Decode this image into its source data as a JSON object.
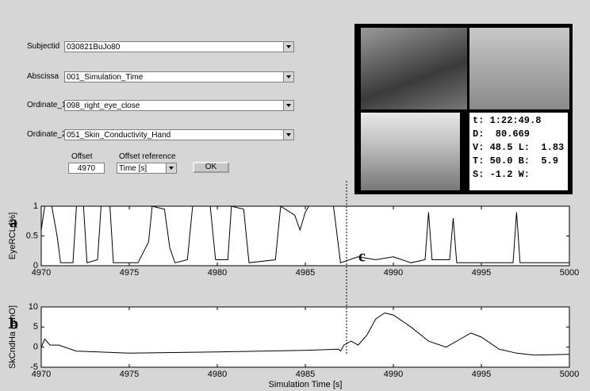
{
  "form": {
    "fields": [
      {
        "label": "Subjectid",
        "value": "030821BuJo80"
      },
      {
        "label": "Abscissa",
        "value": "001_Simulation_Time"
      },
      {
        "label": "Ordinate_1",
        "value": "098_right_eye_close"
      },
      {
        "label": "Ordinate_2",
        "value": "051_Skin_Conductivity_Hand"
      }
    ],
    "offset": {
      "label": "Offset",
      "value": 4970
    },
    "offset_reference": {
      "label": "Offset reference",
      "value": "Time [s]"
    },
    "button": "OK"
  },
  "video": {
    "readout": [
      "t: 1:22:49.8",
      "D:  80.669",
      "V: 48.5 L:  1.83",
      "T: 50.0 B:  5.9",
      "S: -1.2 W:"
    ]
  },
  "panel_labels": [
    "a",
    "b",
    "c"
  ],
  "chart_data": [
    {
      "type": "line",
      "ylabel": "EyeRCL [%]",
      "color": "#000000",
      "x": [
        4970.0,
        4970.2,
        4970.6,
        4970.9,
        4971.1,
        4971.8,
        4972.0,
        4972.4,
        4972.6,
        4973.2,
        4973.4,
        4973.9,
        4974.1,
        4975.5,
        4976.1,
        4976.3,
        4977.0,
        4977.3,
        4977.6,
        4978.3,
        4978.6,
        4979.6,
        4979.9,
        4980.6,
        4980.8,
        4981.5,
        4981.8,
        4983.3,
        4983.6,
        4984.4,
        4984.7,
        4985.0,
        4985.2,
        4985.8,
        4986.6,
        4987.0,
        4988.0,
        4989.0,
        4990.0,
        4991.0,
        4991.8,
        4992.0,
        4992.2,
        4993.2,
        4993.4,
        4993.6,
        4995.0,
        4996.8,
        4997.0,
        4997.2,
        4998.5,
        5000.0
      ],
      "values": [
        0.6,
        1,
        1,
        0.5,
        0.05,
        0.05,
        1,
        1,
        0.05,
        0.1,
        1,
        1,
        0.05,
        0.05,
        0.4,
        1,
        0.95,
        0.3,
        0.05,
        0.1,
        1,
        1,
        0.1,
        0.1,
        1,
        0.95,
        0.05,
        0.1,
        1,
        0.85,
        0.6,
        0.9,
        1,
        1,
        1,
        0.05,
        0.15,
        0.1,
        0.15,
        0.05,
        0.1,
        0.9,
        0.1,
        0.1,
        0.8,
        0.05,
        0.05,
        0.05,
        0.9,
        0.05,
        0.05,
        0.05
      ],
      "xlim": [
        4970,
        5000
      ],
      "xticks": [
        4970,
        4975,
        4980,
        4985,
        4990,
        4995,
        5000
      ],
      "ylim": [
        0,
        1
      ],
      "yticks": [
        0,
        0.5,
        1
      ]
    },
    {
      "type": "line",
      "ylabel": "SkCndHa [mhO]",
      "xlabel": "Simulation Time [s]",
      "color": "#000000",
      "x": [
        4970.0,
        4970.2,
        4970.5,
        4971.0,
        4972.0,
        4975.0,
        4980.0,
        4985.0,
        4986.9,
        4987.0,
        4987.2,
        4987.6,
        4988.0,
        4988.5,
        4989.0,
        4989.5,
        4990.0,
        4991.0,
        4992.0,
        4993.0,
        4993.8,
        4994.4,
        4995.0,
        4996.0,
        4997.0,
        4998.0,
        5000.0
      ],
      "values": [
        0,
        2,
        0.5,
        0.5,
        -1,
        -1.5,
        -1.2,
        -0.8,
        -0.5,
        -1,
        0.5,
        1.5,
        0.5,
        3,
        7,
        8.5,
        8,
        5,
        1.5,
        0,
        2,
        3.5,
        2.5,
        -0.5,
        -1.5,
        -2,
        -1.8
      ],
      "xlim": [
        4970,
        5000
      ],
      "xticks": [
        4970,
        4975,
        4980,
        4985,
        4990,
        4995,
        5000
      ],
      "ylim": [
        -5,
        10
      ],
      "yticks": [
        -5,
        0,
        5,
        10
      ]
    }
  ]
}
